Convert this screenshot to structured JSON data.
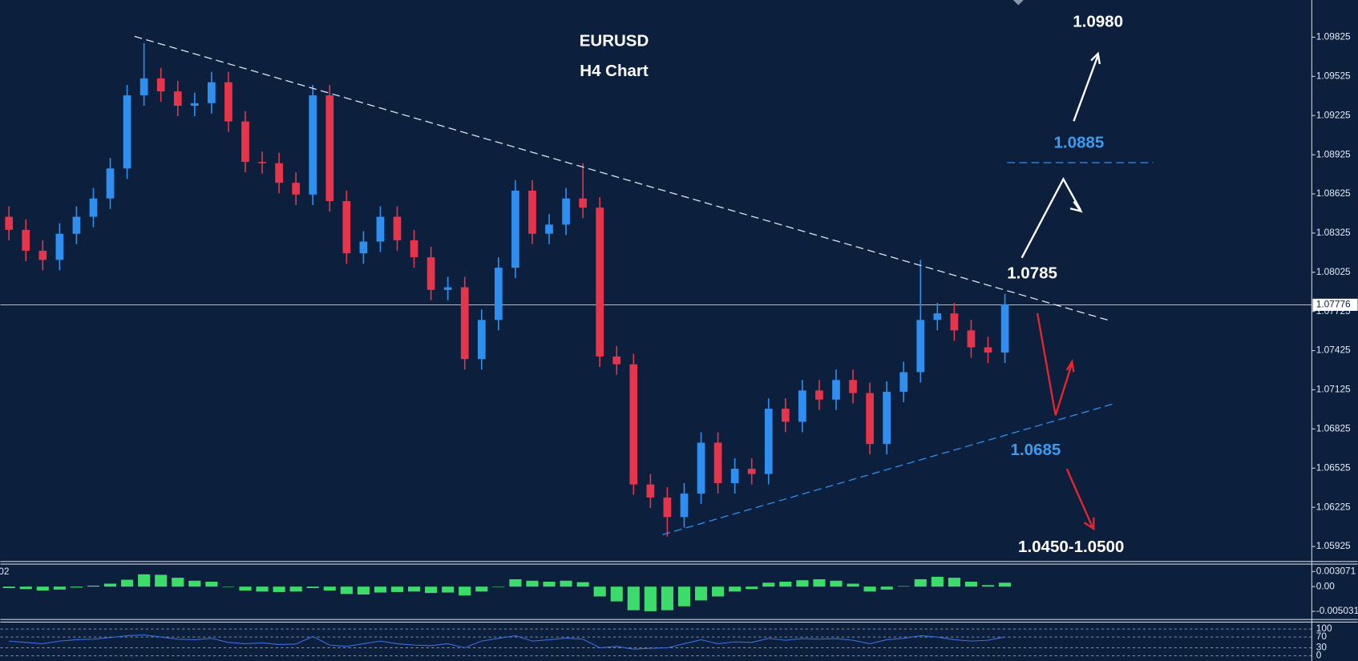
{
  "chart_data": {
    "type": "candlestick",
    "title": "EURUSD",
    "subtitle": "H4 Chart",
    "up_color": "#2f8ff0",
    "down_color": "#e8344a",
    "open": [
      1.0845,
      1.0835,
      1.0819,
      1.0812,
      1.0832,
      1.0845,
      1.0859,
      1.0882,
      1.0938,
      1.0951,
      1.0941,
      1.093,
      1.0932,
      1.0948,
      1.0918,
      1.0887,
      1.0886,
      1.0871,
      1.0862,
      1.0938,
      1.0857,
      1.0817,
      1.0826,
      1.0845,
      1.0827,
      1.0814,
      1.0789,
      1.0791,
      1.0736,
      1.0766,
      1.0806,
      1.0865,
      1.0832,
      1.0839,
      1.0859,
      1.0852,
      1.0738,
      1.0732,
      1.064,
      1.063,
      1.0615,
      1.0633,
      1.0672,
      1.0641,
      1.0652,
      1.0648,
      1.0698,
      1.0688,
      1.0712,
      1.0705,
      1.072,
      1.071,
      1.0671,
      1.0711,
      1.0726,
      1.0766,
      1.0771,
      1.0758,
      1.0745,
      1.0741
    ],
    "high": [
      1.0853,
      1.0843,
      1.0827,
      1.084,
      1.0853,
      1.0867,
      1.089,
      1.0946,
      1.0978,
      1.0959,
      1.0949,
      1.094,
      1.0956,
      1.0956,
      1.0926,
      1.0895,
      1.0894,
      1.0879,
      1.0946,
      1.0946,
      1.0865,
      1.0834,
      1.0853,
      1.0853,
      1.0835,
      1.0822,
      1.0799,
      1.0799,
      1.0774,
      1.0814,
      1.0873,
      1.0873,
      1.0847,
      1.0867,
      1.0886,
      1.086,
      1.0746,
      1.074,
      1.0648,
      1.0638,
      1.0641,
      1.068,
      1.068,
      1.066,
      1.066,
      1.0706,
      1.0706,
      1.072,
      1.072,
      1.0728,
      1.0728,
      1.0718,
      1.0719,
      1.0734,
      1.0812,
      1.0779,
      1.0779,
      1.0766,
      1.0753,
      1.0786
    ],
    "low": [
      1.0827,
      1.0811,
      1.0804,
      1.0804,
      1.0824,
      1.0837,
      1.0851,
      1.0874,
      1.093,
      1.0933,
      1.0922,
      1.0922,
      1.0924,
      1.091,
      1.0879,
      1.0878,
      1.0863,
      1.0854,
      1.0854,
      1.0849,
      1.0809,
      1.0809,
      1.0818,
      1.0819,
      1.0806,
      1.0781,
      1.0781,
      1.0728,
      1.0728,
      1.0758,
      1.0798,
      1.0824,
      1.0824,
      1.0831,
      1.0844,
      1.073,
      1.0724,
      1.0632,
      1.0622,
      1.06,
      1.0607,
      1.0625,
      1.0633,
      1.0633,
      1.064,
      1.064,
      1.068,
      1.068,
      1.0697,
      1.0697,
      1.0702,
      1.0663,
      1.0663,
      1.0703,
      1.0718,
      1.0758,
      1.075,
      1.0737,
      1.0733,
      1.0733
    ],
    "close": [
      1.0835,
      1.0819,
      1.0812,
      1.0832,
      1.0845,
      1.0859,
      1.0882,
      1.0938,
      1.0951,
      1.0941,
      1.093,
      1.0932,
      1.0948,
      1.0918,
      1.0887,
      1.0886,
      1.0871,
      1.0862,
      1.0938,
      1.0857,
      1.0817,
      1.0826,
      1.0845,
      1.0827,
      1.0814,
      1.0789,
      1.0791,
      1.0736,
      1.0766,
      1.0806,
      1.0865,
      1.0832,
      1.0839,
      1.0859,
      1.0852,
      1.0738,
      1.0732,
      1.064,
      1.063,
      1.0615,
      1.0633,
      1.0672,
      1.0641,
      1.0652,
      1.0648,
      1.0698,
      1.0688,
      1.0712,
      1.0705,
      1.072,
      1.071,
      1.0671,
      1.0711,
      1.0726,
      1.0766,
      1.0771,
      1.0758,
      1.0745,
      1.0741,
      1.0778
    ],
    "ylim": [
      1.0581,
      1.1011
    ],
    "yticks": [
      1.09825,
      1.09525,
      1.09225,
      1.08925,
      1.08625,
      1.08325,
      1.08025,
      1.07725,
      1.07425,
      1.07125,
      1.06825,
      1.06525,
      1.06225,
      1.05925
    ],
    "last_price": 1.07776,
    "annotations": [
      "1.0980",
      "1.0885",
      "1.0785",
      "1.0685",
      "1.0450-1.0500"
    ],
    "macd": {
      "label": "02",
      "color": "#3ddc6a",
      "values": [
        -0.0003,
        -0.0005,
        -0.0008,
        -0.0006,
        -0.0002,
        0.0002,
        0.0006,
        0.0014,
        0.0025,
        0.0024,
        0.0018,
        0.0012,
        0.001,
        0.0,
        -0.0008,
        -0.001,
        -0.0011,
        -0.001,
        -0.0003,
        -0.0008,
        -0.0015,
        -0.0016,
        -0.0012,
        -0.0011,
        -0.001,
        -0.0013,
        -0.0012,
        -0.0018,
        -0.001,
        0.0,
        0.0015,
        0.0012,
        0.001,
        0.0012,
        0.0009,
        -0.002,
        -0.003,
        -0.0048,
        -0.005,
        -0.0048,
        -0.004,
        -0.0028,
        -0.002,
        -0.001,
        -0.0005,
        0.0008,
        0.001,
        0.0013,
        0.0015,
        0.0012,
        0.0006,
        -0.001,
        -0.0006,
        0.0001,
        0.0015,
        0.002,
        0.0018,
        0.001,
        0.0003,
        0.0008
      ],
      "ylim": [
        -0.0065,
        0.0044
      ],
      "yticks": [
        0.003071,
        {
          "value": 0,
          "label": "0.00"
        },
        -0.005031
      ]
    },
    "rsi": {
      "color": "#3b6fe0",
      "values": [
        55,
        50,
        45,
        55,
        60,
        62,
        68,
        75,
        78,
        70,
        62,
        60,
        65,
        50,
        45,
        48,
        42,
        44,
        72,
        40,
        35,
        45,
        55,
        45,
        40,
        38,
        45,
        30,
        55,
        65,
        75,
        55,
        60,
        66,
        62,
        30,
        35,
        25,
        28,
        30,
        45,
        60,
        45,
        52,
        50,
        65,
        58,
        64,
        62,
        64,
        58,
        45,
        60,
        65,
        75,
        70,
        60,
        55,
        58,
        70
      ],
      "ylim": [
        0,
        100
      ],
      "yticks": [
        100,
        70,
        30,
        0
      ]
    }
  }
}
